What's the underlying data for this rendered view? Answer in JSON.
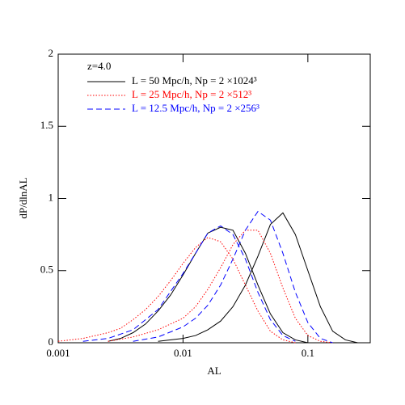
{
  "chart_data": {
    "type": "line",
    "xlabel": "AL",
    "ylabel": "dP/dlnAL",
    "annotation": "z=4.0",
    "xscale": "log",
    "xlim": [
      0.001,
      0.316
    ],
    "xticks": [
      0.001,
      0.01,
      0.1
    ],
    "ylim": [
      0,
      2
    ],
    "yticks": [
      0,
      0.5,
      1,
      1.5,
      2
    ],
    "series": [
      {
        "name": "L = 50 Mpc/h, Np = 2 ×1024³",
        "color": "#000000",
        "dash": "solid",
        "curves": [
          {
            "x": [
              0.00251,
              0.00316,
              0.00398,
              0.00501,
              0.00631,
              0.00794,
              0.01,
              0.0126,
              0.0158,
              0.02,
              0.0251,
              0.0316,
              0.0398,
              0.0501,
              0.0631,
              0.0794,
              0.1
            ],
            "values": [
              0.01,
              0.03,
              0.07,
              0.13,
              0.22,
              0.33,
              0.47,
              0.62,
              0.76,
              0.8,
              0.78,
              0.62,
              0.4,
              0.2,
              0.07,
              0.02,
              0
            ]
          },
          {
            "x": [
              0.00631,
              0.01,
              0.0126,
              0.0158,
              0.02,
              0.0251,
              0.0316,
              0.0398,
              0.0501,
              0.0631,
              0.0794,
              0.1,
              0.126,
              0.158,
              0.2,
              0.251
            ],
            "values": [
              0.01,
              0.03,
              0.05,
              0.09,
              0.15,
              0.25,
              0.4,
              0.6,
              0.82,
              0.9,
              0.75,
              0.5,
              0.25,
              0.08,
              0.02,
              0
            ]
          }
        ]
      },
      {
        "name": "L = 25 Mpc/h, Np = 2 ×512³",
        "color": "#ff0000",
        "dash": "dotted",
        "curves": [
          {
            "x": [
              0.001,
              0.00158,
              0.00251,
              0.00316,
              0.00398,
              0.00501,
              0.00631,
              0.00794,
              0.01,
              0.0126,
              0.0158,
              0.02,
              0.0251,
              0.0316,
              0.0398,
              0.0501,
              0.0631,
              0.0794
            ],
            "values": [
              0.01,
              0.03,
              0.07,
              0.1,
              0.16,
              0.23,
              0.32,
              0.43,
              0.55,
              0.66,
              0.73,
              0.7,
              0.58,
              0.4,
              0.22,
              0.08,
              0.02,
              0
            ]
          },
          {
            "x": [
              0.00251,
              0.00398,
              0.00631,
              0.01,
              0.0126,
              0.0158,
              0.02,
              0.0251,
              0.0316,
              0.0398,
              0.0501,
              0.0631,
              0.0794,
              0.1,
              0.126,
              0.158
            ],
            "values": [
              0.01,
              0.04,
              0.09,
              0.17,
              0.25,
              0.37,
              0.52,
              0.68,
              0.78,
              0.78,
              0.62,
              0.38,
              0.17,
              0.05,
              0.01,
              0
            ]
          }
        ]
      },
      {
        "name": "L = 12.5 Mpc/h, Np = 2 ×256³",
        "color": "#0000ff",
        "dash": "dashed",
        "curves": [
          {
            "x": [
              0.00158,
              0.00251,
              0.00398,
              0.00631,
              0.01,
              0.0126,
              0.0158,
              0.02,
              0.0251,
              0.0316,
              0.0398,
              0.0501,
              0.0631,
              0.0794
            ],
            "values": [
              0.01,
              0.03,
              0.09,
              0.23,
              0.48,
              0.62,
              0.76,
              0.81,
              0.75,
              0.58,
              0.35,
              0.16,
              0.05,
              0.01
            ]
          },
          {
            "x": [
              0.00398,
              0.00631,
              0.01,
              0.0126,
              0.0158,
              0.02,
              0.0251,
              0.0316,
              0.0398,
              0.0501,
              0.0631,
              0.0794,
              0.1,
              0.126,
              0.158
            ],
            "values": [
              0.01,
              0.04,
              0.11,
              0.17,
              0.26,
              0.4,
              0.58,
              0.78,
              0.91,
              0.85,
              0.62,
              0.35,
              0.14,
              0.03,
              0
            ]
          }
        ]
      }
    ]
  }
}
